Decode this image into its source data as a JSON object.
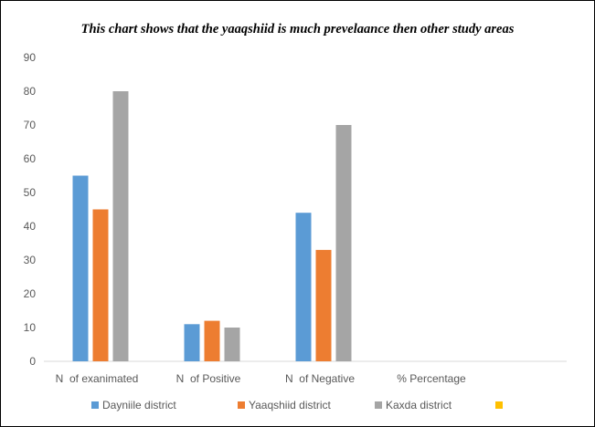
{
  "chart_data": {
    "type": "bar",
    "title": "This chart shows that the yaaqshiid is much prevelaance then other study areas",
    "categories": [
      "N  of exanimated",
      "N  of Positive",
      "N  of Negative",
      "% Percentage"
    ],
    "series": [
      {
        "name": "Dayniile district",
        "color": "#5B9BD5",
        "values": [
          55,
          11,
          44,
          null
        ]
      },
      {
        "name": "Yaaqshiid district",
        "color": "#ED7D31",
        "values": [
          45,
          12,
          33,
          null
        ]
      },
      {
        "name": "Kaxda district",
        "color": "#A5A5A5",
        "values": [
          80,
          10,
          70,
          null
        ]
      },
      {
        "name": "",
        "color": "#FFC000",
        "values": [
          null,
          null,
          null,
          null
        ]
      }
    ],
    "ylim": [
      0,
      90
    ],
    "yticks": [
      0,
      10,
      20,
      30,
      40,
      50,
      60,
      70,
      80,
      90
    ],
    "xlabel": "",
    "ylabel": "",
    "grid": false,
    "legend_position": "bottom"
  }
}
